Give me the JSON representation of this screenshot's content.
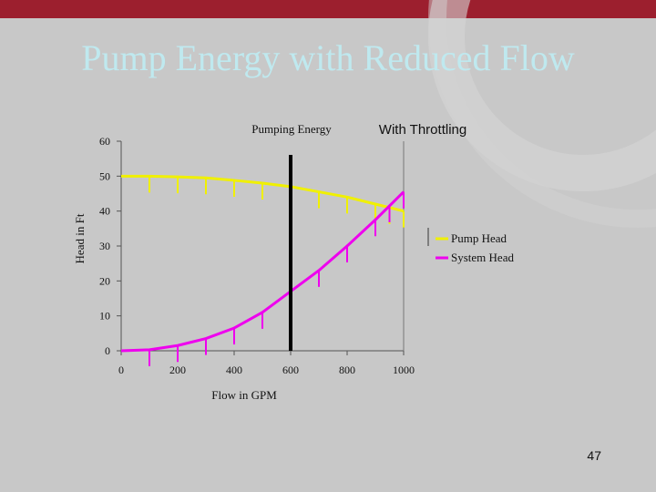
{
  "slide": {
    "title": "Pump Energy with Reduced Flow",
    "page_number": "47"
  },
  "colors": {
    "header_bar": "#9c1f2e",
    "background": "#c8c8c8",
    "title": "#bfe9ef",
    "pump_head": "#f0f000",
    "system_head": "#ee00ee",
    "throttle_line": "#000000"
  },
  "chart_data": {
    "type": "line",
    "title": "Pumping Energy",
    "annotation": "With Throttling",
    "xlabel": "Flow in GPM",
    "ylabel": "Head in Ft",
    "xlim": [
      0,
      1000
    ],
    "ylim": [
      0,
      60
    ],
    "x_ticks": [
      0,
      200,
      400,
      600,
      800,
      1000
    ],
    "y_ticks": [
      0,
      10,
      20,
      30,
      40,
      50,
      60
    ],
    "throttle_flow": 600,
    "series": [
      {
        "name": "Pump Head",
        "color": "#f0f000",
        "x": [
          0,
          100,
          200,
          300,
          400,
          500,
          600,
          700,
          800,
          900,
          950,
          1000
        ],
        "y": [
          50,
          50,
          49.8,
          49.5,
          48.8,
          48,
          47,
          45.5,
          44,
          42,
          41,
          40
        ]
      },
      {
        "name": "System Head",
        "color": "#ee00ee",
        "x": [
          0,
          100,
          200,
          300,
          400,
          500,
          600,
          700,
          800,
          900,
          950,
          1000
        ],
        "y": [
          0,
          0.3,
          1.5,
          3.5,
          6.5,
          11,
          17,
          23,
          30,
          37.5,
          41.5,
          45.5
        ]
      }
    ]
  }
}
